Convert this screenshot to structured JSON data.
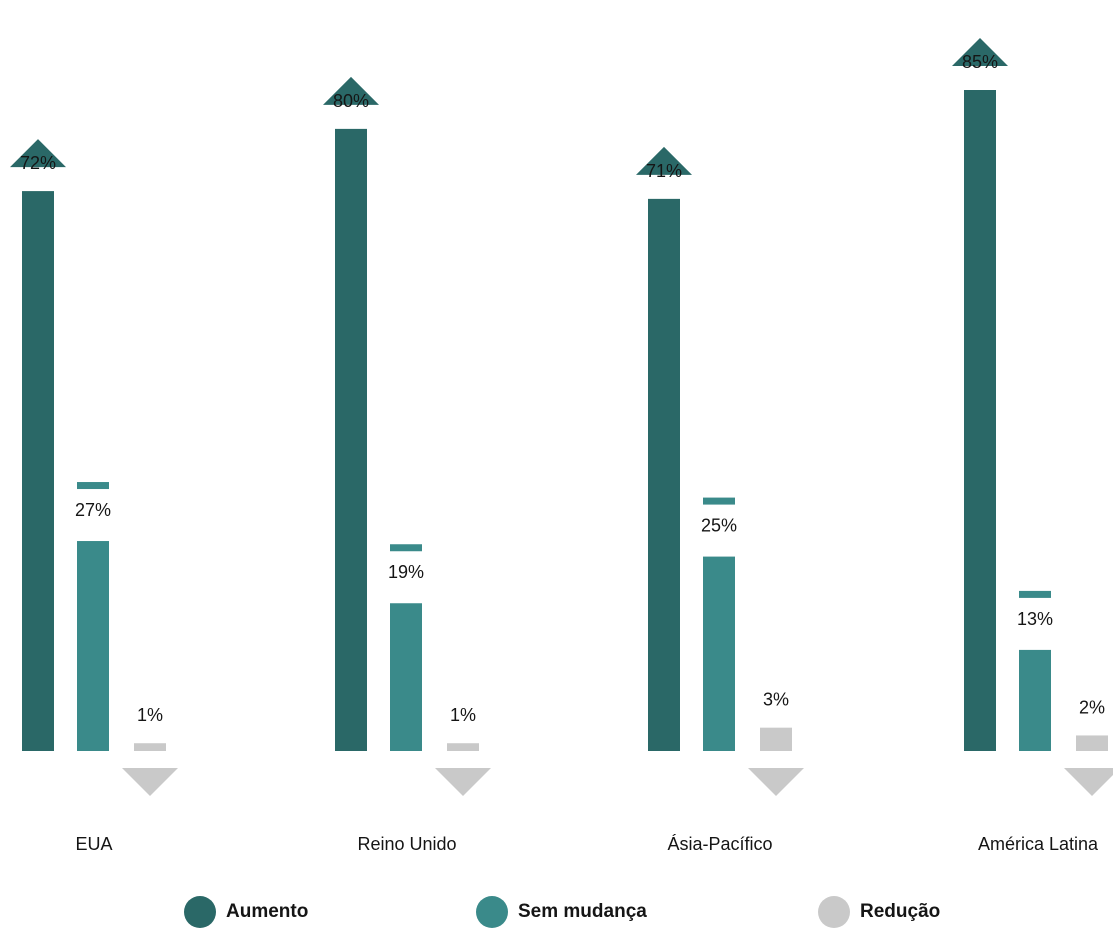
{
  "chart_data": {
    "type": "bar",
    "categories": [
      "EUA",
      "Reino Unido",
      "Ásia-Pacífico",
      "América Latina"
    ],
    "series": [
      {
        "name": "Aumento",
        "values": [
          72,
          80,
          71,
          85
        ],
        "labels": [
          "72%",
          "80%",
          "71%",
          "85%"
        ],
        "color": "#2a6867",
        "marker": "triangle-up"
      },
      {
        "name": "Sem mudança",
        "values": [
          27,
          19,
          25,
          13
        ],
        "labels": [
          "27%",
          "19%",
          "25%",
          "13%"
        ],
        "color": "#3a8a8a",
        "marker": "dash"
      },
      {
        "name": "Redução",
        "values": [
          1,
          1,
          3,
          2
        ],
        "labels": [
          "1%",
          "1%",
          "3%",
          "2%"
        ],
        "color": "#c9c9c9",
        "marker": "triangle-down"
      }
    ],
    "ylim": [
      0,
      100
    ],
    "grid": false,
    "legend_position": "bottom"
  },
  "legend": {
    "items": [
      {
        "label": "Aumento",
        "color": "#2a6867"
      },
      {
        "label": "Sem mudança",
        "color": "#3a8a8a"
      },
      {
        "label": "Redução",
        "color": "#c9c9c9"
      }
    ]
  }
}
